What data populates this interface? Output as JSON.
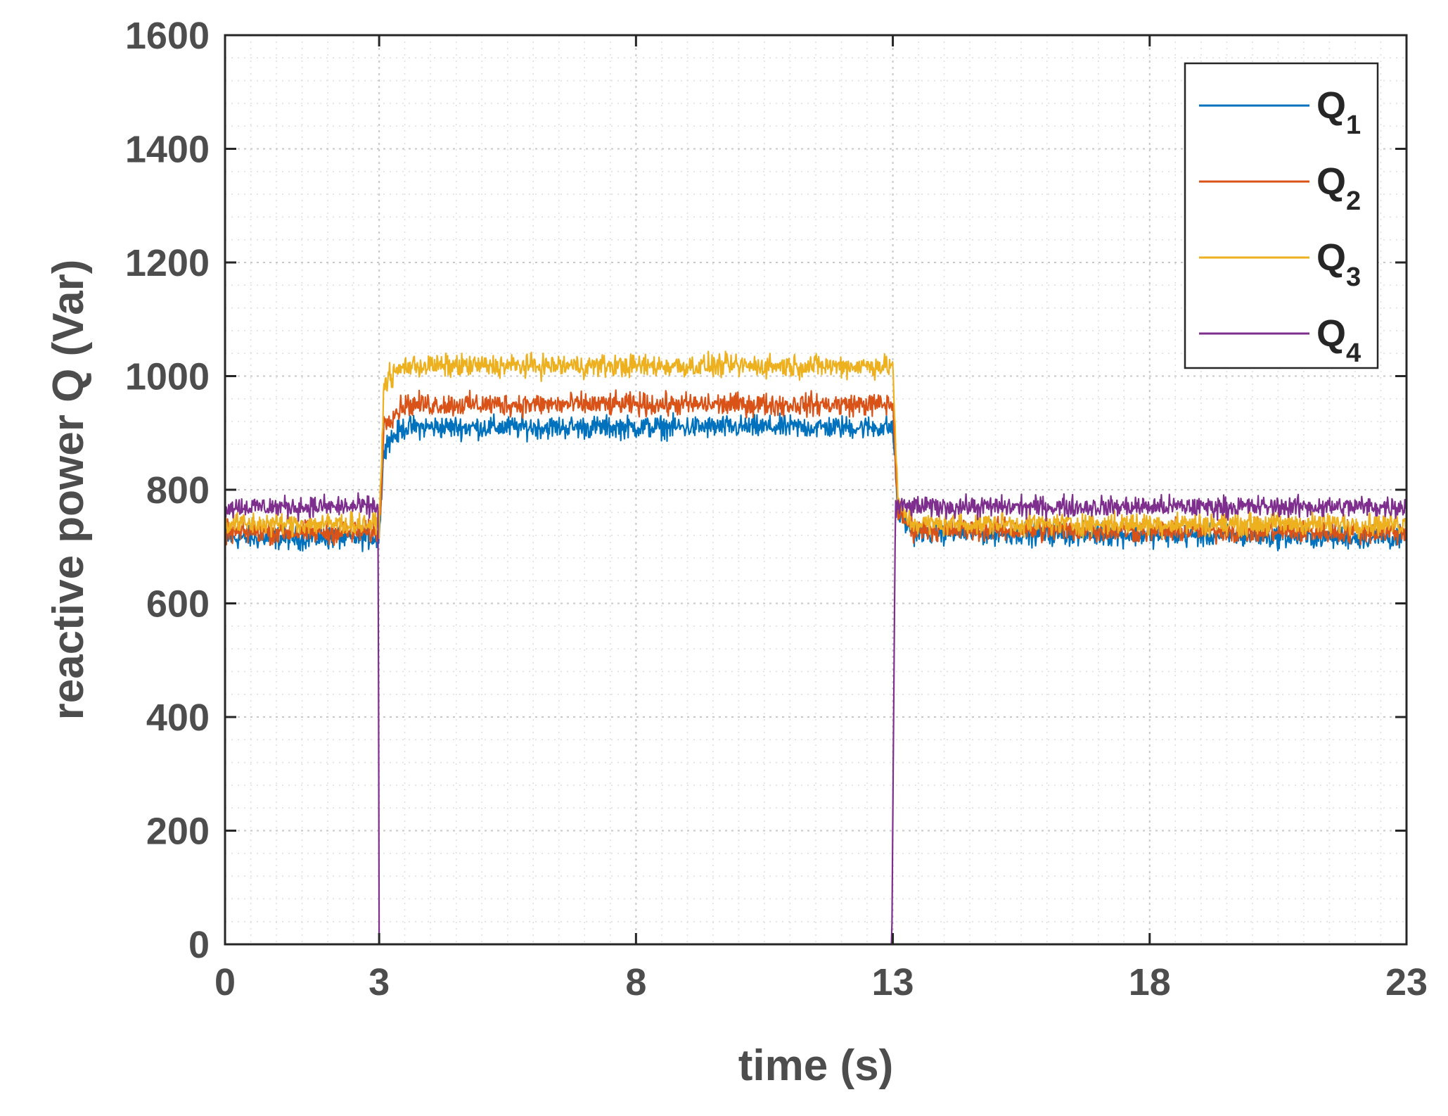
{
  "chart_data": {
    "type": "line",
    "xlabel": "time (s)",
    "ylabel": "reactive power Q (Var)",
    "xlim": [
      0,
      23
    ],
    "ylim": [
      0,
      1600
    ],
    "xticks": [
      0,
      3,
      8,
      13,
      18,
      23
    ],
    "xtick_labels": [
      "0",
      "3",
      "8",
      "13",
      "18",
      "23"
    ],
    "yticks": [
      0,
      200,
      400,
      600,
      800,
      1000,
      1200,
      1400,
      1600
    ],
    "ytick_labels": [
      "0",
      "200",
      "400",
      "600",
      "800",
      "1000",
      "1200",
      "1400",
      "1600"
    ],
    "grid": "major and minor, dotted",
    "legend_position": "top-right",
    "events": [
      {
        "t": 3,
        "description": "unit 4 output drops to 0"
      },
      {
        "t": 13,
        "description": "unit 4 output restored"
      }
    ],
    "series": [
      {
        "name": "Q",
        "subscript": "1",
        "color": "#0072BD",
        "points": [
          [
            0,
            715
          ],
          [
            3,
            715
          ],
          [
            3.1,
            880
          ],
          [
            3.5,
            910
          ],
          [
            13,
            910
          ],
          [
            13.1,
            760
          ],
          [
            13.4,
            725
          ],
          [
            23,
            715
          ]
        ],
        "noise": 14
      },
      {
        "name": "Q",
        "subscript": "2",
        "color": "#D95319",
        "points": [
          [
            0,
            725
          ],
          [
            3,
            725
          ],
          [
            3.1,
            920
          ],
          [
            3.5,
            950
          ],
          [
            13,
            950
          ],
          [
            13.1,
            760
          ],
          [
            13.4,
            730
          ],
          [
            23,
            725
          ]
        ],
        "noise": 14
      },
      {
        "name": "Q",
        "subscript": "3",
        "color": "#EDB120",
        "points": [
          [
            0,
            740
          ],
          [
            3,
            740
          ],
          [
            3.1,
            990
          ],
          [
            3.5,
            1018
          ],
          [
            13,
            1018
          ],
          [
            13.1,
            770
          ],
          [
            13.4,
            740
          ],
          [
            23,
            740
          ]
        ],
        "noise": 14
      },
      {
        "name": "Q",
        "subscript": "4",
        "color": "#7E2F8E",
        "points": [
          [
            0,
            770
          ],
          [
            2.98,
            770
          ],
          [
            3.0,
            0
          ],
          [
            12.98,
            0
          ],
          [
            13.05,
            770
          ],
          [
            23,
            770
          ]
        ],
        "noise": 13
      }
    ]
  }
}
